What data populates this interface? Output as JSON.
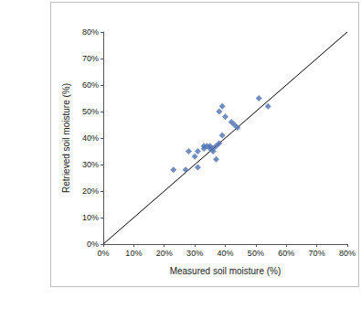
{
  "chart_data": {
    "type": "scatter",
    "xlabel": "Measured soil moisture (%)",
    "ylabel": "Retrieved soil moisture (%)",
    "xlim": [
      0,
      80
    ],
    "ylim": [
      0,
      80
    ],
    "xticks": [
      {
        "value": 0,
        "label": "0%"
      },
      {
        "value": 10,
        "label": "10%"
      },
      {
        "value": 20,
        "label": "20%"
      },
      {
        "value": 30,
        "label": "30%"
      },
      {
        "value": 40,
        "label": "40%"
      },
      {
        "value": 50,
        "label": "50%"
      },
      {
        "value": 60,
        "label": "60%"
      },
      {
        "value": 70,
        "label": "70%"
      },
      {
        "value": 80,
        "label": "80%"
      }
    ],
    "yticks": [
      {
        "value": 0,
        "label": "0%"
      },
      {
        "value": 10,
        "label": "10%"
      },
      {
        "value": 20,
        "label": "20%"
      },
      {
        "value": 30,
        "label": "30%"
      },
      {
        "value": 40,
        "label": "40%"
      },
      {
        "value": 50,
        "label": "50%"
      },
      {
        "value": 60,
        "label": "60%"
      },
      {
        "value": 70,
        "label": "70%"
      },
      {
        "value": 80,
        "label": "80%"
      }
    ],
    "grid": false,
    "series": [
      {
        "type": "scatter",
        "color": "#4f72b0",
        "marker": "diamond",
        "x": [
          23,
          27,
          28,
          30,
          31,
          31,
          33,
          33,
          34,
          35,
          35,
          36,
          36,
          37,
          37,
          38,
          38,
          39,
          39,
          40,
          42,
          43,
          44,
          51,
          54
        ],
        "values": [
          28,
          28,
          35,
          33,
          29,
          35,
          36,
          37,
          37,
          36,
          37,
          36,
          35,
          37,
          32,
          50,
          38,
          41,
          52,
          48,
          46,
          45,
          44,
          55,
          52
        ]
      },
      {
        "type": "line",
        "color": "#000000",
        "line_style": "solid",
        "x": [
          0,
          80
        ],
        "values": [
          0,
          80
        ]
      }
    ]
  }
}
